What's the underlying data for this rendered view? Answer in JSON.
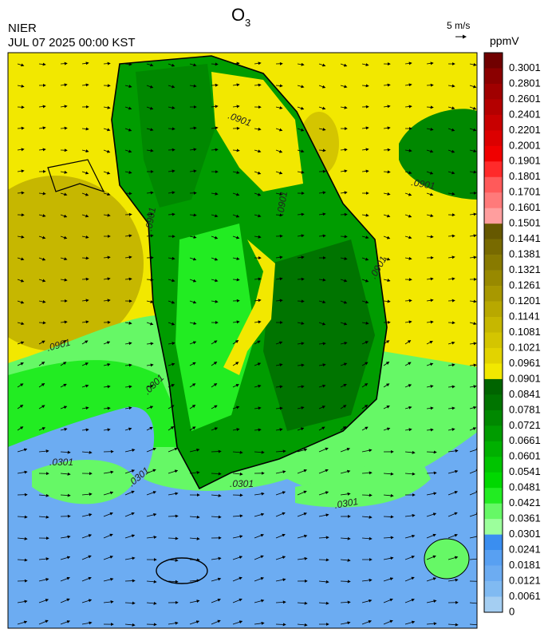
{
  "header": {
    "title": {
      "main": "O",
      "sub": "3"
    },
    "agency": "NIER",
    "datetime": "JUL 07 2025 00:00 KST",
    "vector_scale": "5 m/s"
  },
  "colorbar": {
    "unit": "ppmV",
    "labels": [
      "0.3001",
      "0.2801",
      "0.2601",
      "0.2401",
      "0.2201",
      "0.2001",
      "0.1901",
      "0.1801",
      "0.1701",
      "0.1601",
      "0.1501",
      "0.1441",
      "0.1381",
      "0.1321",
      "0.1261",
      "0.1201",
      "0.1141",
      "0.1081",
      "0.1021",
      "0.0961",
      "0.0901",
      "0.0841",
      "0.0781",
      "0.0721",
      "0.0661",
      "0.0601",
      "0.0541",
      "0.0481",
      "0.0421",
      "0.0361",
      "0.0301",
      "0.0241",
      "0.0181",
      "0.0121",
      "0.0061",
      "0"
    ],
    "colors": [
      "#700000",
      "#8b0000",
      "#a00000",
      "#b40000",
      "#c80000",
      "#dc0000",
      "#f00000",
      "#ff2a2a",
      "#ff5a5a",
      "#ff7a7a",
      "#ff9e9e",
      "#665800",
      "#786a00",
      "#887a00",
      "#988900",
      "#a89800",
      "#b8a800",
      "#c6b700",
      "#d4c500",
      "#e2d300",
      "#f2e800",
      "#006400",
      "#007400",
      "#008800",
      "#009c00",
      "#00b000",
      "#00c400",
      "#00d800",
      "#22ec22",
      "#66f866",
      "#9cff9c",
      "#3a8ef0",
      "#58a0f2",
      "#6cacf2",
      "#80baf2",
      "#a4cef2"
    ]
  },
  "map": {
    "contour_labels": [
      ".0901",
      ".0901",
      ".0901",
      ".0901",
      ".0901",
      ".0901",
      ".0301",
      ".0301",
      ".0301",
      ".0301",
      ".0301"
    ]
  }
}
